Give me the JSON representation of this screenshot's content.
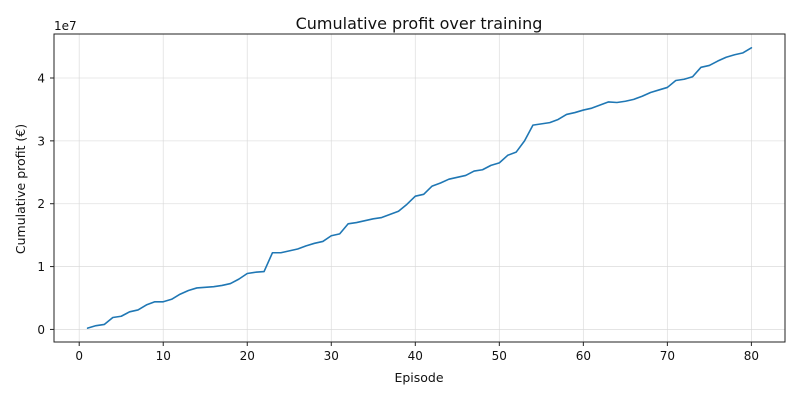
{
  "chart_data": {
    "type": "line",
    "title": "Cumulative profit over training",
    "xlabel": "Episode",
    "ylabel": "Cumulative profit (€)",
    "y_offset_label": "1e7",
    "xlim": [
      -3,
      84
    ],
    "ylim": [
      -0.2,
      4.7
    ],
    "y_scale_factor": 10000000,
    "grid": true,
    "x_ticks": [
      0,
      10,
      20,
      30,
      40,
      50,
      60,
      70,
      80
    ],
    "y_ticks": [
      0,
      1,
      2,
      3,
      4
    ],
    "series": [
      {
        "color": "#1f77b4",
        "x": [
          1,
          2,
          3,
          4,
          5,
          6,
          7,
          8,
          9,
          10,
          11,
          12,
          13,
          14,
          15,
          16,
          17,
          18,
          19,
          20,
          21,
          22,
          23,
          24,
          25,
          26,
          27,
          28,
          29,
          30,
          31,
          32,
          33,
          34,
          35,
          36,
          37,
          38,
          39,
          40,
          41,
          42,
          43,
          44,
          45,
          46,
          47,
          48,
          49,
          50,
          51,
          52,
          53,
          54,
          55,
          56,
          57,
          58,
          59,
          60,
          61,
          62,
          63,
          64,
          65,
          66,
          67,
          68,
          69,
          70,
          71,
          72,
          73,
          74,
          75,
          76,
          77,
          78,
          79,
          80
        ],
        "y": [
          0.02,
          0.06,
          0.08,
          0.19,
          0.21,
          0.28,
          0.31,
          0.39,
          0.44,
          0.44,
          0.48,
          0.56,
          0.62,
          0.66,
          0.67,
          0.68,
          0.7,
          0.73,
          0.8,
          0.89,
          0.91,
          0.92,
          1.22,
          1.22,
          1.25,
          1.28,
          1.33,
          1.37,
          1.4,
          1.49,
          1.52,
          1.68,
          1.7,
          1.73,
          1.76,
          1.78,
          1.83,
          1.88,
          1.99,
          2.12,
          2.15,
          2.28,
          2.33,
          2.39,
          2.42,
          2.45,
          2.52,
          2.54,
          2.61,
          2.65,
          2.77,
          2.82,
          3.0,
          3.25,
          3.27,
          3.29,
          3.34,
          3.42,
          3.45,
          3.49,
          3.52,
          3.57,
          3.62,
          3.61,
          3.63,
          3.66,
          3.71,
          3.77,
          3.81,
          3.85,
          3.96,
          3.98,
          4.02,
          4.17,
          4.2,
          4.27,
          4.33,
          4.37,
          4.4,
          4.48
        ]
      }
    ]
  }
}
